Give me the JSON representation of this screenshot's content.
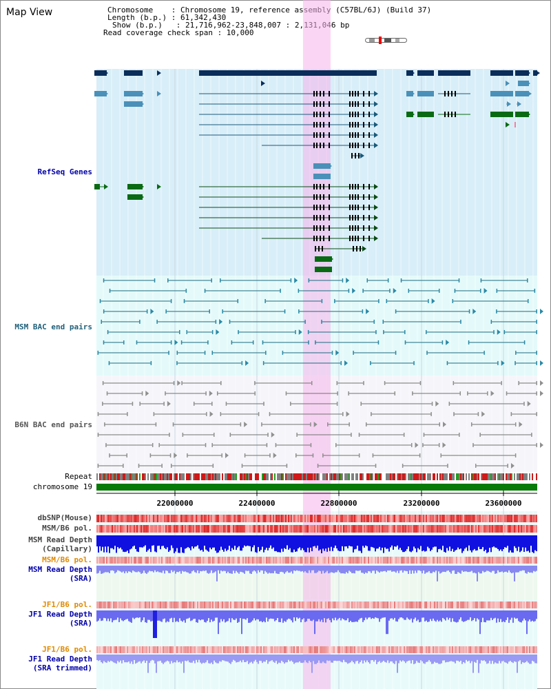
{
  "title": "Map View",
  "info": {
    "chromosome_line": "Chromosome    : Chromosome 19, reference assembly (C57BL/6J) (Build 37)",
    "length_line": "Length (b.p.) : 61,342,430",
    "show_line": "Show (b.p.)   : 21,716,962-23,848,007 : 2,131,046 bp",
    "span_line": "Read coverage check span : 10,000"
  },
  "tracks": {
    "refseq": "RefSeq Genes",
    "msm_bac": "MSM BAC end pairs",
    "b6n_bac": "B6N BAC end pairs",
    "repeat": "Repeat",
    "chromosome": "chromosome 19",
    "dbsnp": "dbSNP(Mouse)",
    "msm_b6_pol_1": "MSM/B6 pol.",
    "msm_depth_cap_1": "MSM Read Depth",
    "msm_depth_cap_2": "(Capillary)",
    "msm_b6_pol_2": "MSM/B6 pol.",
    "msm_depth_sra_1": "MSM Read Depth",
    "msm_depth_sra_2": "(SRA)",
    "jf1_b6_pol_1": "JF1/B6 pol.",
    "jf1_depth_sra_1": "JF1 Read Depth",
    "jf1_depth_sra_2": "(SRA)",
    "jf1_b6_pol_2": "JF1/B6 pol.",
    "jf1_depth_trim_1": "JF1 Read Depth",
    "jf1_depth_trim_2": "(SRA trimmed)"
  },
  "axis_ticks": [
    "22000000",
    "22400000",
    "22800000",
    "23200000",
    "23600000"
  ],
  "colors": {
    "refseq_bg": "#d8eef8",
    "bac_bg": "#e4fafa",
    "b6n_bg": "#f6f6fa",
    "highlight": "#f5b4eb",
    "gene_navy": "#0a2d5a",
    "gene_blue": "#4a90b8",
    "gene_green": "#0a6a14",
    "chromosome_bar": "#087a08"
  }
}
